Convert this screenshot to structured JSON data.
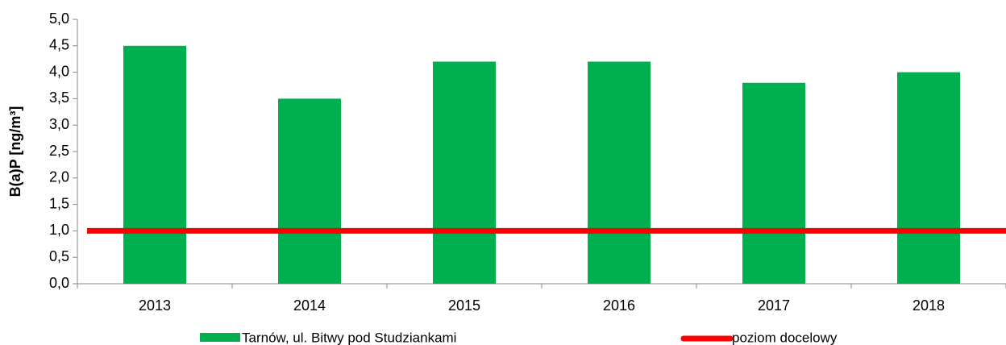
{
  "chart_data": {
    "type": "bar",
    "y_label": "B(a)P [ng/m³]",
    "categories": [
      "2013",
      "2014",
      "2015",
      "2016",
      "2017",
      "2018"
    ],
    "series": [
      {
        "name": "Tarnów, ul. Bitwy pod Studziankami",
        "color": "#00b050",
        "type": "bar",
        "values": [
          4.5,
          3.5,
          4.2,
          4.2,
          3.8,
          4.0
        ]
      },
      {
        "name": "poziom docelowy",
        "color": "#ff0000",
        "type": "line",
        "values": [
          1.0,
          1.0,
          1.0,
          1.0,
          1.0,
          1.0
        ]
      }
    ],
    "ylim": [
      0,
      5
    ],
    "yticks": [
      {
        "value": 0,
        "label": "0,0"
      },
      {
        "value": 0.5,
        "label": "0,5"
      },
      {
        "value": 1,
        "label": "1,0"
      },
      {
        "value": 1.5,
        "label": "1,5"
      },
      {
        "value": 2,
        "label": "2,0"
      },
      {
        "value": 2.5,
        "label": "2,5"
      },
      {
        "value": 3,
        "label": "3,0"
      },
      {
        "value": 3.5,
        "label": "3,5"
      },
      {
        "value": 4,
        "label": "4,0"
      },
      {
        "value": 4.5,
        "label": "4,5"
      },
      {
        "value": 5,
        "label": "5,0"
      }
    ],
    "grid": false,
    "legend": "bottom"
  }
}
